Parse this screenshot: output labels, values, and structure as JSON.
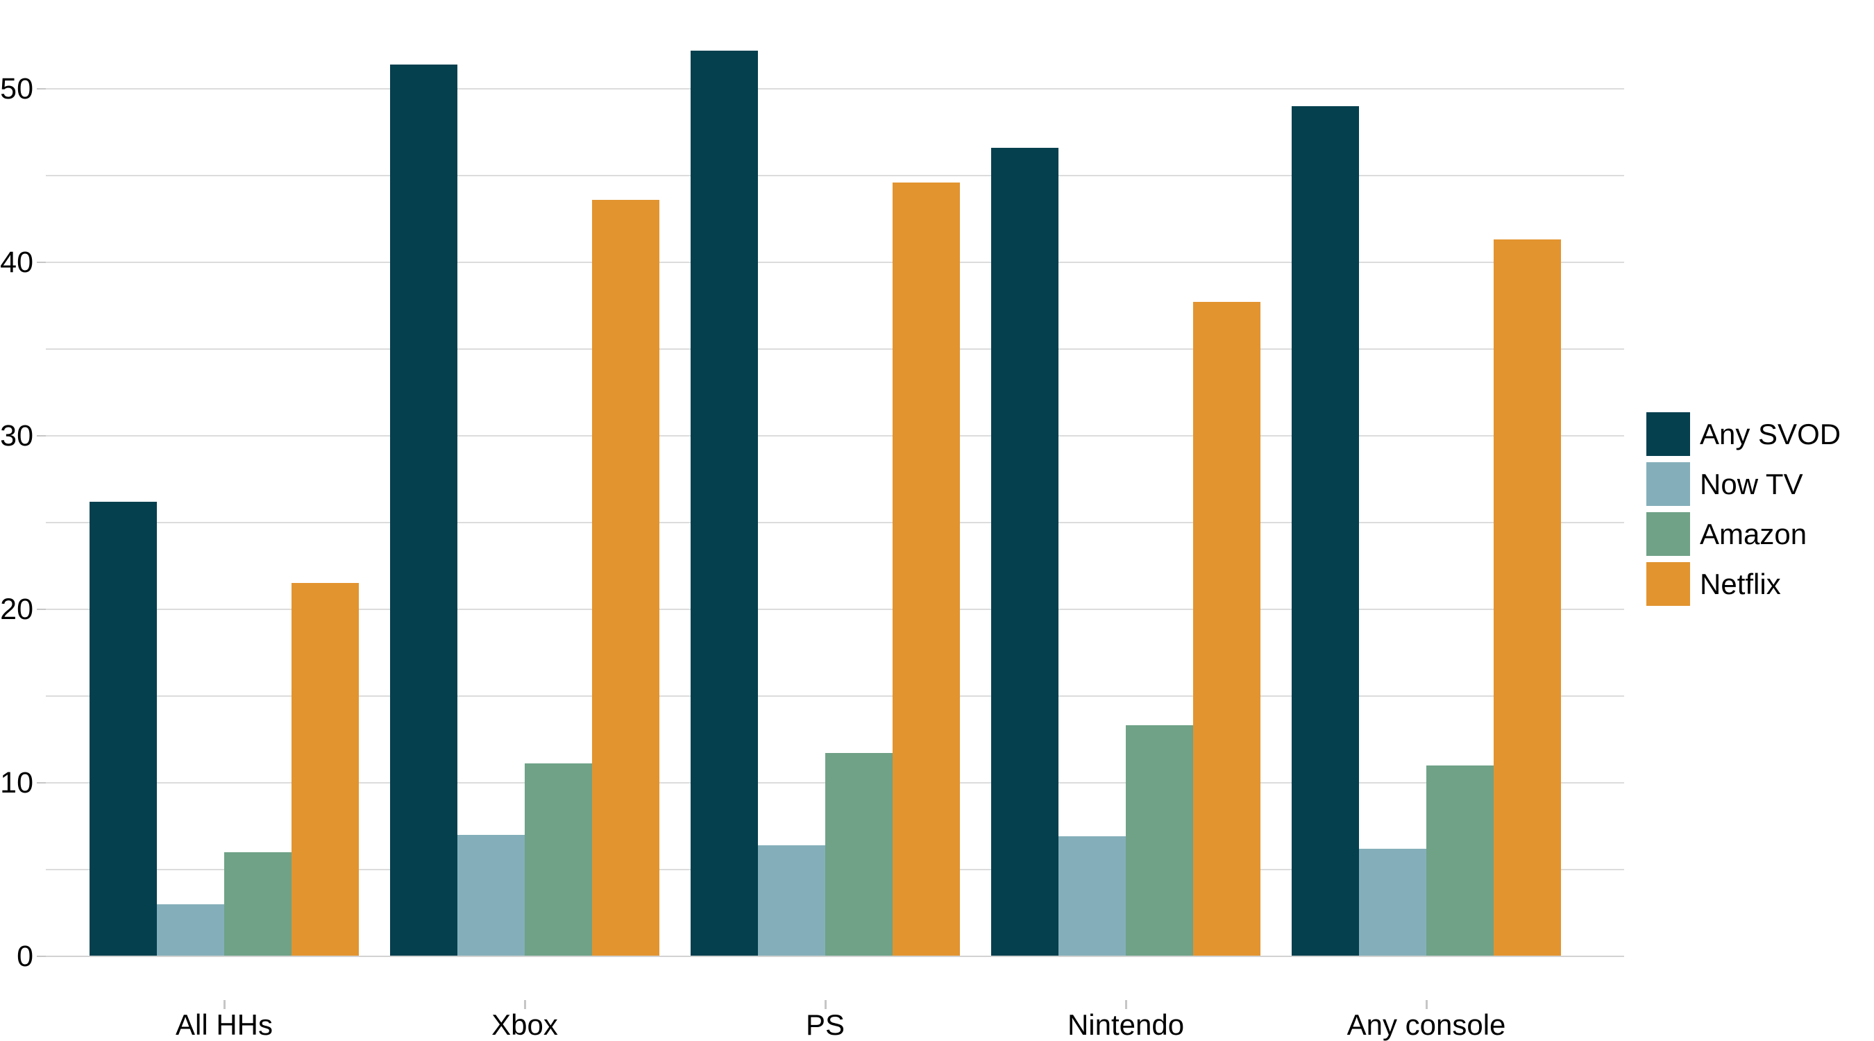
{
  "chart_data": {
    "type": "bar",
    "title": "",
    "categories": [
      "All HHs",
      "Xbox",
      "PS",
      "Nintendo",
      "Any console"
    ],
    "series": [
      {
        "name": "Any SVOD",
        "color": "#05404f",
        "values": [
          26.2,
          51.4,
          52.2,
          46.6,
          49.0
        ]
      },
      {
        "name": "Now TV",
        "color": "#84afba",
        "values": [
          3.0,
          7.0,
          6.4,
          6.9,
          6.2
        ]
      },
      {
        "name": "Amazon",
        "color": "#6fa287",
        "values": [
          6.0,
          11.1,
          11.7,
          13.3,
          11.0
        ]
      },
      {
        "name": "Netflix",
        "color": "#e2942f",
        "values": [
          21.5,
          43.6,
          44.6,
          37.7,
          41.3
        ]
      }
    ],
    "y_axis": {
      "tick_labels": [
        0,
        10,
        20,
        30,
        40,
        50
      ],
      "gridline_values": [
        0,
        5,
        10,
        15,
        20,
        25,
        30,
        35,
        40,
        45,
        50
      ],
      "ylim": [
        0,
        55.1
      ]
    },
    "x_axis": {
      "tick_labels": [
        "All HHs",
        "Xbox",
        "PS",
        "Nintendo",
        "Any console"
      ]
    },
    "legend": {
      "position": "right",
      "entries": [
        "Any SVOD",
        "Now TV",
        "Amazon",
        "Netflix"
      ]
    },
    "grid": true,
    "colors": {
      "gridline": "#dcdcdc",
      "tick": "#c6c6c6",
      "text": "#000000",
      "background": "#ffffff"
    }
  }
}
